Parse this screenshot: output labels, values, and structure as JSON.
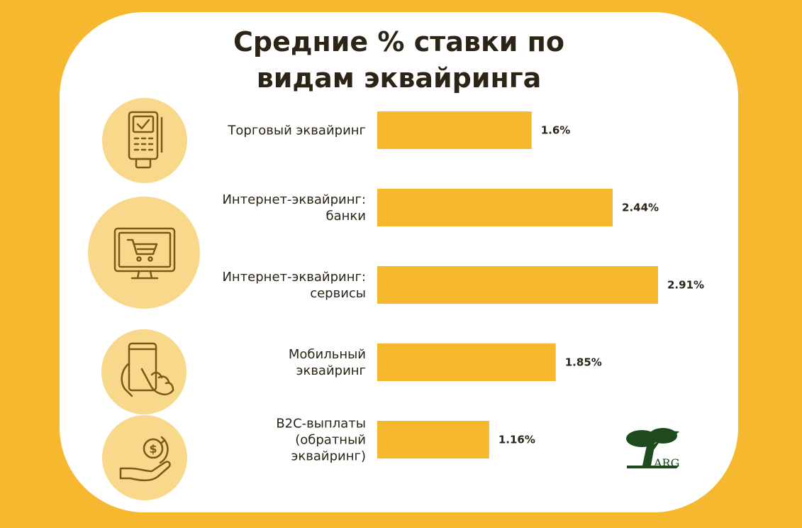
{
  "theme": {
    "background": "#F5B82E",
    "card": "#FFFFFF",
    "bar_color": "#F5B82E",
    "icon_circle": "#F8D88A",
    "icon_stroke": "#7A5A14",
    "text": "#2B2417",
    "logo_green": "#1E4A1E"
  },
  "chart_data": {
    "type": "bar",
    "orientation": "horizontal",
    "title_lines": [
      "Средние % ставки по",
      "видам эквайринга"
    ],
    "categories": [
      [
        "Торговый эквайринг"
      ],
      [
        "Интернет-эквайринг:",
        "банки"
      ],
      [
        "Интернет-эквайринг:",
        "сервисы"
      ],
      [
        "Мобильный",
        "эквайринг"
      ],
      [
        "B2C-выплаты",
        "(обратный",
        "эквайринг)"
      ]
    ],
    "values": [
      1.6,
      2.44,
      2.91,
      1.85,
      1.16
    ],
    "value_labels": [
      "1.6%",
      "2.44%",
      "2.91%",
      "1.85%",
      "1.16%"
    ],
    "xlim": [
      0,
      2.91
    ],
    "grid": false,
    "legend": "none"
  },
  "icons": [
    "pos-terminal-icon",
    "shopping-cart-monitor-icon",
    "smartphone-hand-icon",
    "money-hand-icon"
  ],
  "logo": {
    "text": "ARG",
    "icon": "tree-logo-icon"
  }
}
